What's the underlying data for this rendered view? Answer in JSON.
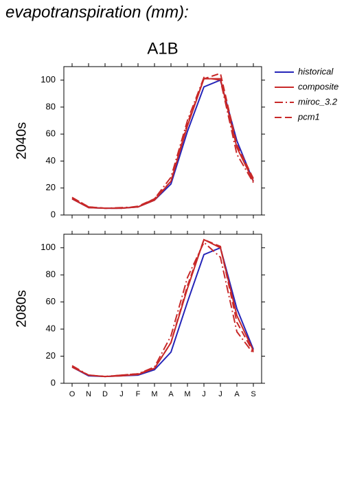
{
  "title": "evapotranspiration (mm):",
  "subtitle": "A1B",
  "chart_data": [
    {
      "type": "line",
      "ylabel": "2040s",
      "ylim": [
        0,
        110
      ],
      "yticks": [
        0,
        20,
        40,
        60,
        80,
        100
      ],
      "series": [
        {
          "name": "historical",
          "color": "#2424b8",
          "style": "solid",
          "values": [
            12,
            5.5,
            5,
            5,
            6,
            11,
            23,
            62,
            95,
            100,
            55,
            25
          ]
        },
        {
          "name": "composite",
          "color": "#c82828",
          "style": "solid",
          "values": [
            12,
            5.5,
            5,
            5,
            6,
            11,
            25,
            66,
            101,
            101,
            50,
            25
          ]
        },
        {
          "name": "miroc_3.2",
          "color": "#c82828",
          "style": "dashdot",
          "values": [
            13,
            6,
            5,
            5.5,
            6,
            12,
            28,
            70,
            102,
            100,
            45,
            24
          ]
        },
        {
          "name": "pcm1",
          "color": "#c82828",
          "style": "dashed",
          "values": [
            13,
            6,
            5,
            5,
            6.5,
            12,
            25,
            68,
            101,
            105,
            52,
            27
          ]
        }
      ]
    },
    {
      "type": "line",
      "ylabel": "2080s",
      "ylim": [
        0,
        110
      ],
      "yticks": [
        0,
        20,
        40,
        60,
        80,
        100
      ],
      "categories": [
        "O",
        "N",
        "D",
        "J",
        "F",
        "M",
        "A",
        "M",
        "J",
        "J",
        "A",
        "S"
      ],
      "series": [
        {
          "color": "#2424b8",
          "style": "solid",
          "values": [
            12,
            5.5,
            5,
            5.5,
            6,
            10,
            23,
            60,
            95,
            100,
            55,
            25
          ]
        },
        {
          "color": "#c82828",
          "style": "solid",
          "values": [
            12,
            6,
            5,
            5.5,
            6.5,
            11,
            30,
            70,
            106,
            100,
            50,
            24
          ]
        },
        {
          "color": "#c82828",
          "style": "dashdot",
          "values": [
            13,
            6,
            5,
            6,
            7,
            12,
            35,
            78,
            104,
            93,
            38,
            22
          ]
        },
        {
          "color": "#c82828",
          "style": "dashed",
          "values": [
            12,
            6,
            5,
            6,
            7,
            11,
            30,
            72,
            106,
            101,
            45,
            23
          ]
        }
      ]
    }
  ]
}
